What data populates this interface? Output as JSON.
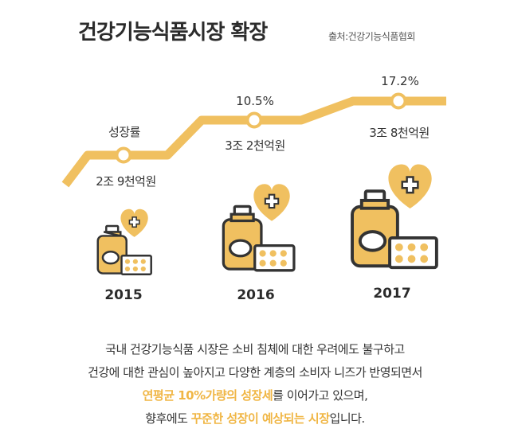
{
  "title": "건강기능식품시장 확장",
  "source": "출처:건강기능식품협회",
  "chart_data": {
    "type": "line",
    "categories": [
      "2015",
      "2016",
      "2017"
    ],
    "market_size_labels": [
      "2조 9천억원",
      "3조 2천억원",
      "3조 8천억원"
    ],
    "growth_rate_labels": [
      "성장률",
      "10.5%",
      "17.2%"
    ],
    "growth_rate": [
      null,
      10.5,
      17.2
    ],
    "market_size_trillion_won": [
      2.9,
      3.2,
      3.8
    ]
  },
  "colors": {
    "accent": "#f0c060",
    "highlight_text": "#f0b645",
    "dark_outline": "#333333"
  },
  "caption": {
    "line1": "국내 건강기능식품 시장은 소비 침체에 대한 우려에도 불구하고",
    "line2": "건강에 대한 관심이 높아지고 다양한 계층의 소비자 니즈가 반영되면서",
    "line3_hl": "연평균 10%가량의 성장세",
    "line3_rest": "를 이어가고 있으며,",
    "line4_pre": "향후에도 ",
    "line4_hl": "꾸준한 성장이 예상되는 시장",
    "line4_rest": "입니다."
  },
  "icons": [
    "supplement-bottle-icon",
    "heart-plus-icon",
    "pill-pack-icon"
  ]
}
